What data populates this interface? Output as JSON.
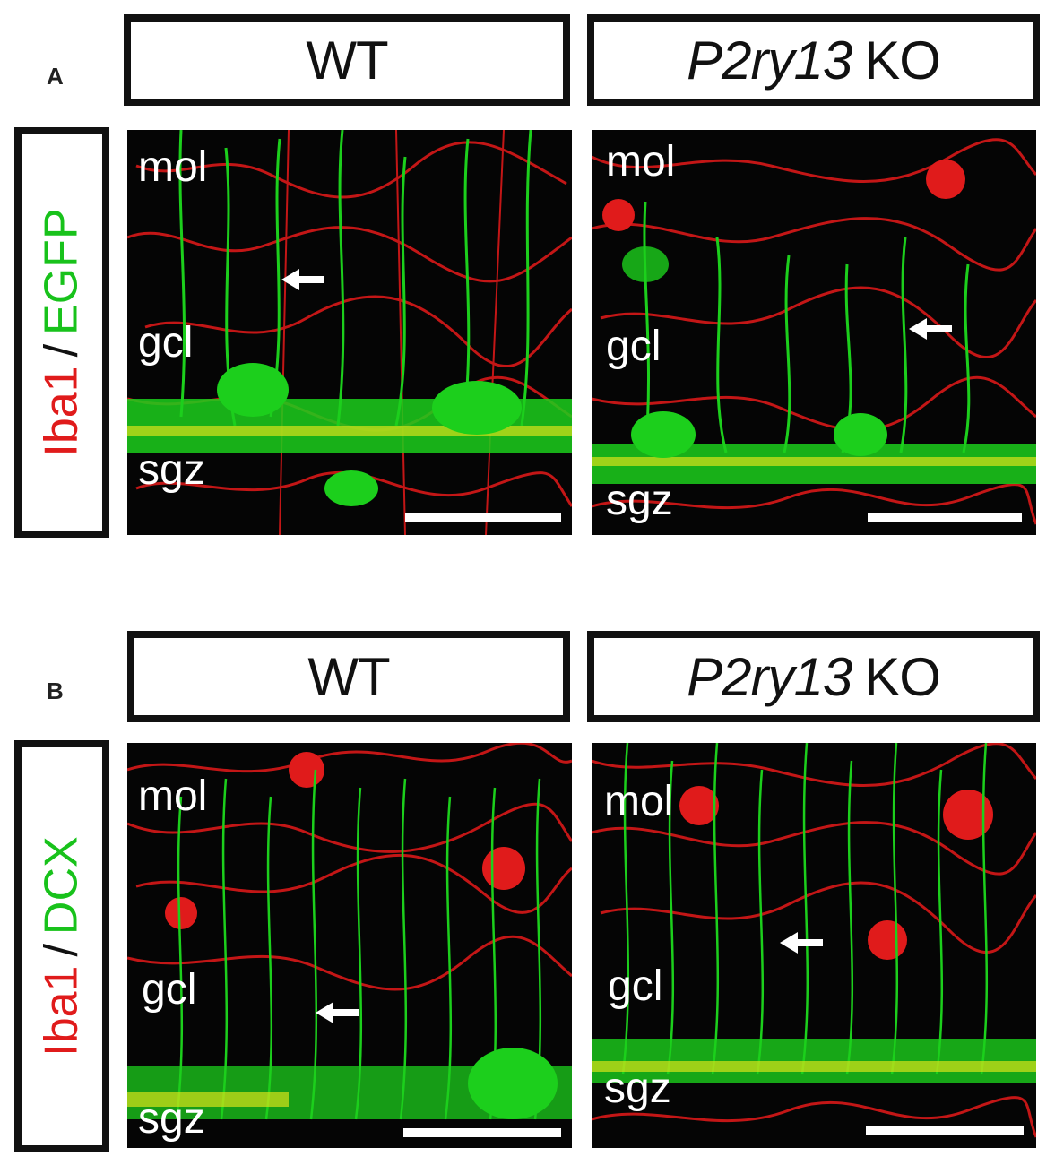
{
  "panels": [
    {
      "letter": "A",
      "row_label": {
        "marker1": "Iba1",
        "separator": "/",
        "marker2": "EGFP"
      },
      "columns": [
        {
          "header": "WT",
          "gene": "",
          "layers": [
            "mol",
            "gcl",
            "sgz"
          ]
        },
        {
          "header": "KO",
          "gene": "P2ry13",
          "layers": [
            "mol",
            "gcl",
            "sgz"
          ]
        }
      ]
    },
    {
      "letter": "B",
      "row_label": {
        "marker1": "Iba1",
        "separator": "/",
        "marker2": "DCX"
      },
      "columns": [
        {
          "header": "WT",
          "gene": "",
          "layers": [
            "mol",
            "gcl",
            "sgz"
          ]
        },
        {
          "header": "KO",
          "gene": "P2ry13",
          "layers": [
            "mol",
            "gcl",
            "sgz"
          ]
        }
      ]
    }
  ],
  "colors": {
    "iba1_red": "#e01b1b",
    "green_channel": "#18c21b",
    "merge_yellow": "#d8e21a",
    "background": "#050505"
  }
}
